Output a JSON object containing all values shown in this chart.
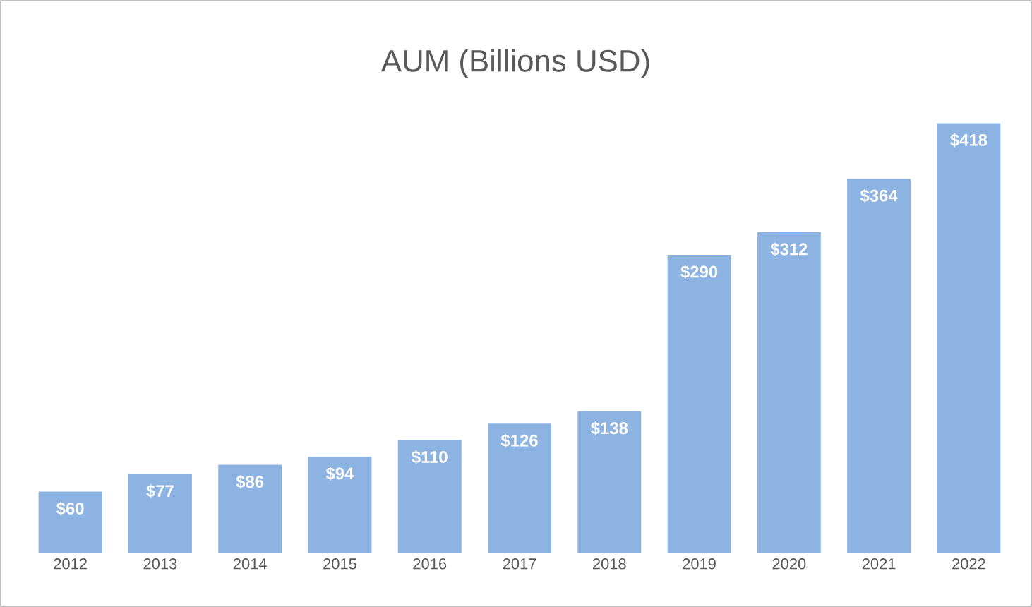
{
  "chart_data": {
    "type": "bar",
    "title": "AUM (Billions USD)",
    "categories": [
      "2012",
      "2013",
      "2014",
      "2015",
      "2016",
      "2017",
      "2018",
      "2019",
      "2020",
      "2021",
      "2022"
    ],
    "values": [
      60,
      77,
      86,
      94,
      110,
      126,
      138,
      290,
      312,
      364,
      418
    ],
    "value_labels": [
      "$60",
      "$77",
      "$86",
      "$94",
      "$110",
      "$126",
      "$138",
      "$290",
      "$312",
      "$364",
      "$418"
    ],
    "color": "#8db3e2"
  }
}
